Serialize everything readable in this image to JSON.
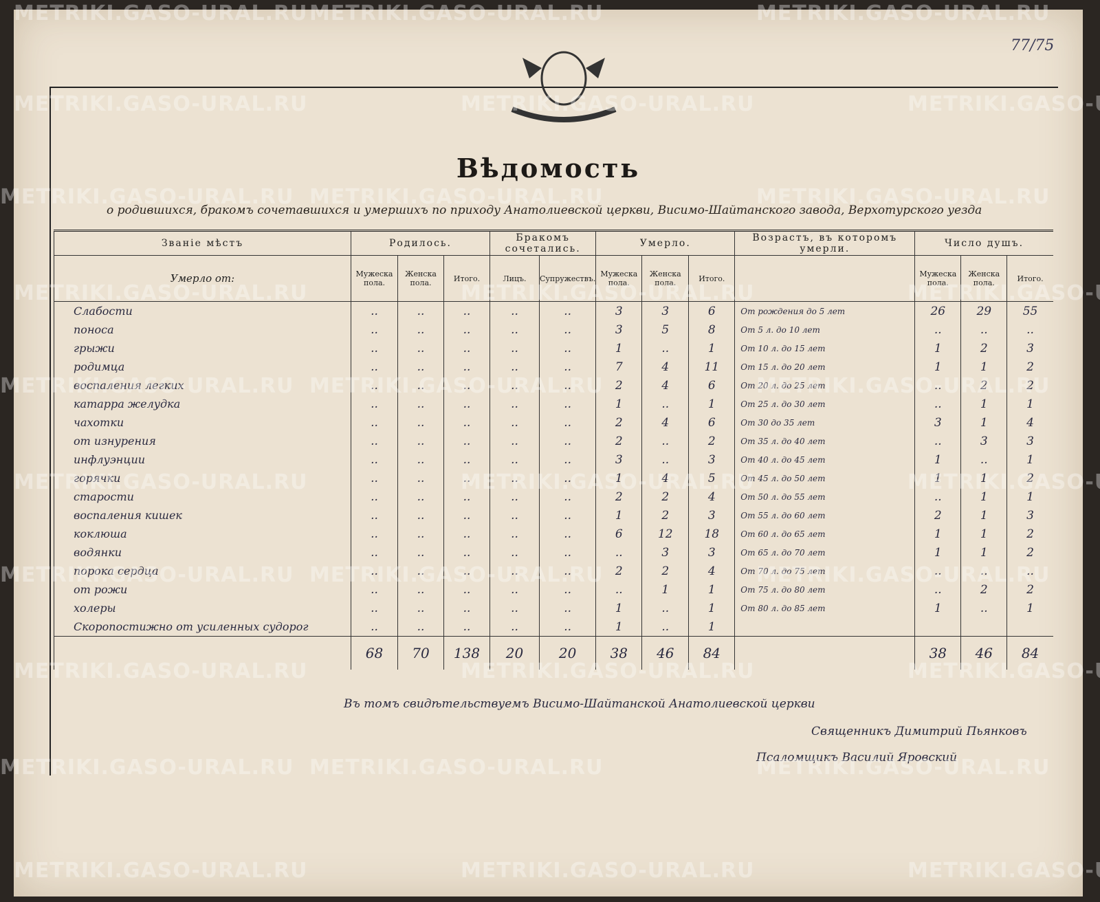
{
  "watermark": "METRIKI.GASO-URAL.RU",
  "page_number": "77/75",
  "header": {
    "title": "Вѣдомость",
    "subtitle": "о родившихся, бракомъ сочетавшихся и умершихъ по приходу Анатолиевской церкви, Висимо-Шайтанского завода, Верхотурского уезда"
  },
  "table": {
    "group_headers": [
      "Званіе мѣстъ",
      "Родилось.",
      "Бракомъ сочетались.",
      "Умерло.",
      "Возрастъ, въ которомъ умерли.",
      "Число душъ."
    ],
    "place_subheader": "Умерло от:",
    "sub_headers": [
      "Мужеска пола.",
      "Женска пола.",
      "Итого.",
      "Лицъ.",
      "Супружествъ.",
      "Мужеска пола.",
      "Женска пола.",
      "Итого.",
      "Мужеска пола.",
      "Женска пола.",
      "Итого."
    ],
    "rows": [
      [
        "Слабости",
        "..",
        "..",
        "..",
        "..",
        "..",
        3,
        3,
        6,
        "От рождения до 5 лет",
        26,
        29,
        55
      ],
      [
        "поноса",
        "..",
        "..",
        "..",
        "..",
        "..",
        3,
        5,
        8,
        "От 5 л. до 10 лет",
        "..",
        "..",
        ".."
      ],
      [
        "грыжи",
        "..",
        "..",
        "..",
        "..",
        "..",
        1,
        "..",
        1,
        "От 10 л. до 15 лет",
        1,
        2,
        3
      ],
      [
        "родимца",
        "..",
        "..",
        "..",
        "..",
        "..",
        7,
        4,
        11,
        "От 15 л. до 20 лет",
        1,
        1,
        2
      ],
      [
        "воспаления легких",
        "..",
        "..",
        "..",
        "..",
        "..",
        2,
        4,
        6,
        "От 20 л. до 25 лет",
        "..",
        2,
        2
      ],
      [
        "катарра желудка",
        "..",
        "..",
        "..",
        "..",
        "..",
        1,
        "..",
        1,
        "От 25 л. до 30 лет",
        "..",
        1,
        1
      ],
      [
        "чахотки",
        "..",
        "..",
        "..",
        "..",
        "..",
        2,
        4,
        6,
        "От 30 до 35 лет",
        3,
        1,
        4
      ],
      [
        "от изнурения",
        "..",
        "..",
        "..",
        "..",
        "..",
        2,
        "..",
        2,
        "От 35 л. до 40 лет",
        "..",
        3,
        3
      ],
      [
        "инфлуэнции",
        "..",
        "..",
        "..",
        "..",
        "..",
        3,
        "..",
        3,
        "От 40 л. до 45 лет",
        1,
        "..",
        1
      ],
      [
        "горячки",
        "..",
        "..",
        "..",
        "..",
        "..",
        1,
        4,
        5,
        "От 45 л. до 50 лет",
        1,
        1,
        2
      ],
      [
        "старости",
        "..",
        "..",
        "..",
        "..",
        "..",
        2,
        2,
        4,
        "От 50 л. до 55 лет",
        "..",
        1,
        1
      ],
      [
        "воспаления кишек",
        "..",
        "..",
        "..",
        "..",
        "..",
        1,
        2,
        3,
        "От 55 л. до 60 лет",
        2,
        1,
        3
      ],
      [
        "коклюша",
        "..",
        "..",
        "..",
        "..",
        "..",
        6,
        12,
        18,
        "От 60 л. до 65 лет",
        1,
        1,
        2
      ],
      [
        "водянки",
        "..",
        "..",
        "..",
        "..",
        "..",
        "..",
        3,
        3,
        "От 65 л. до 70 лет",
        1,
        1,
        2
      ],
      [
        "порока сердца",
        "..",
        "..",
        "..",
        "..",
        "..",
        2,
        2,
        4,
        "От 70 л. до 75 лет",
        "..",
        "..",
        ".."
      ],
      [
        "от рожи",
        "..",
        "..",
        "..",
        "..",
        "..",
        "..",
        1,
        1,
        "От 75 л. до 80 лет",
        "..",
        2,
        2
      ],
      [
        "холеры",
        "..",
        "..",
        "..",
        "..",
        "..",
        1,
        "..",
        1,
        "От 80 л. до 85 лет",
        1,
        "..",
        1
      ],
      [
        "Скоропостижно от усиленных судорог",
        "..",
        "..",
        "..",
        "..",
        "..",
        1,
        "..",
        1,
        "",
        "",
        "",
        ""
      ]
    ],
    "totals": [
      "",
      68,
      70,
      138,
      20,
      20,
      38,
      46,
      84,
      "",
      38,
      46,
      84
    ]
  },
  "signatures": [
    "Въ томъ свидѣтельствуемъ Висимо-Шайтанской Анатолиевской церкви",
    "Священникъ Димитрий Пьянковъ",
    "Псаломщикъ Василий Яровский"
  ]
}
